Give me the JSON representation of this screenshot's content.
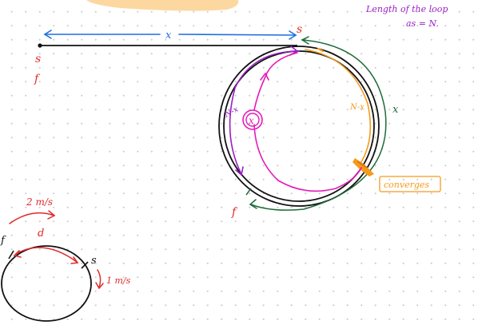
{
  "note": {
    "line1": "Length of the loop",
    "line2": "as = N."
  },
  "labels": {
    "x_top": "x",
    "s_top": "s",
    "s_left": "s",
    "f_left": "f",
    "n_minus_x_left": "N-x",
    "circled_x": "x",
    "n_minus_x_right": "N-x",
    "x_right": "x",
    "converges": "converges",
    "f_bottom": "f",
    "speed_2": "2 m/s",
    "d": "d",
    "f_small": "f",
    "s_small": "s",
    "speed_1": "1 m/s"
  },
  "colors": {
    "purple": "#9b1fc4",
    "blue": "#1e6fe0",
    "red": "#e02b2b",
    "orange": "#f59a1b",
    "green": "#1f6b3a",
    "magenta": "#e51bb8",
    "black": "#111111",
    "highlight": "#fcd8a0"
  }
}
